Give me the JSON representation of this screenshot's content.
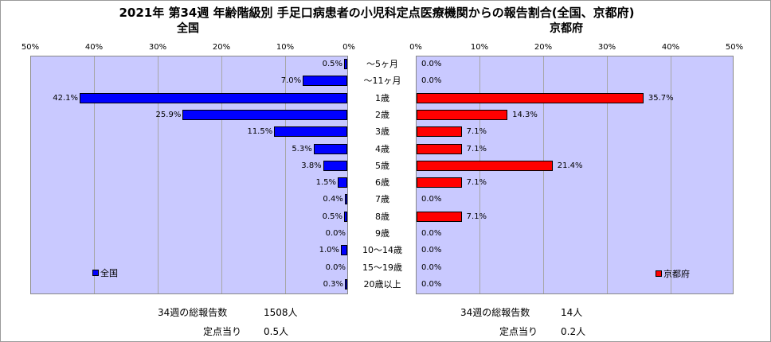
{
  "title": "2021年 第34週 年齢階級別 手足口病患者の小児科定点医療機関からの報告割合(全国、京都府)",
  "colors": {
    "national": "#0000ff",
    "kyoto": "#ff0000",
    "plot_bg": "#c9c9ff"
  },
  "chart_data": [
    {
      "type": "bar",
      "orientation": "horizontal",
      "subtitle": "全国",
      "legend": "全国",
      "legend_position": "bottom-left",
      "xlim": [
        0,
        50
      ],
      "x_direction": "reversed",
      "ticks": [
        "50%",
        "40%",
        "30%",
        "20%",
        "10%",
        "0%"
      ],
      "categories": [
        "～5ヶ月",
        "～11ヶ月",
        "1歳",
        "2歳",
        "3歳",
        "4歳",
        "5歳",
        "6歳",
        "7歳",
        "8歳",
        "9歳",
        "10～14歳",
        "15～19歳",
        "20歳以上"
      ],
      "values": [
        0.5,
        7.0,
        42.1,
        25.9,
        11.5,
        5.3,
        3.8,
        1.5,
        0.4,
        0.5,
        0.0,
        1.0,
        0.0,
        0.3
      ],
      "labels": [
        "0.5%",
        "7.0%",
        "42.1%",
        "25.9%",
        "11.5%",
        "5.3%",
        "3.8%",
        "1.5%",
        "0.4%",
        "0.5%",
        "0.0%",
        "1.0%",
        "0.0%",
        "0.3%"
      ],
      "grid": true
    },
    {
      "type": "bar",
      "orientation": "horizontal",
      "subtitle": "京都府",
      "legend": "京都府",
      "legend_position": "bottom-right",
      "xlim": [
        0,
        50
      ],
      "ticks": [
        "0%",
        "10%",
        "20%",
        "30%",
        "40%",
        "50%"
      ],
      "categories": [
        "～5ヶ月",
        "～11ヶ月",
        "1歳",
        "2歳",
        "3歳",
        "4歳",
        "5歳",
        "6歳",
        "7歳",
        "8歳",
        "9歳",
        "10～14歳",
        "15～19歳",
        "20歳以上"
      ],
      "values": [
        0.0,
        0.0,
        35.7,
        14.3,
        7.1,
        7.1,
        21.4,
        7.1,
        0.0,
        7.1,
        0.0,
        0.0,
        0.0,
        0.0
      ],
      "labels": [
        "0.0%",
        "0.0%",
        "35.7%",
        "14.3%",
        "7.1%",
        "7.1%",
        "21.4%",
        "7.1%",
        "0.0%",
        "7.1%",
        "0.0%",
        "0.0%",
        "0.0%",
        "0.0%"
      ],
      "grid": true
    }
  ],
  "stats": {
    "national_total_label": "34週の総報告数",
    "national_total_value": "1508人",
    "national_per_label": "定点当り",
    "national_per_value": "0.5人",
    "kyoto_total_label": "34週の総報告数",
    "kyoto_total_value": "14人",
    "kyoto_per_label": "定点当り",
    "kyoto_per_value": "0.2人"
  }
}
